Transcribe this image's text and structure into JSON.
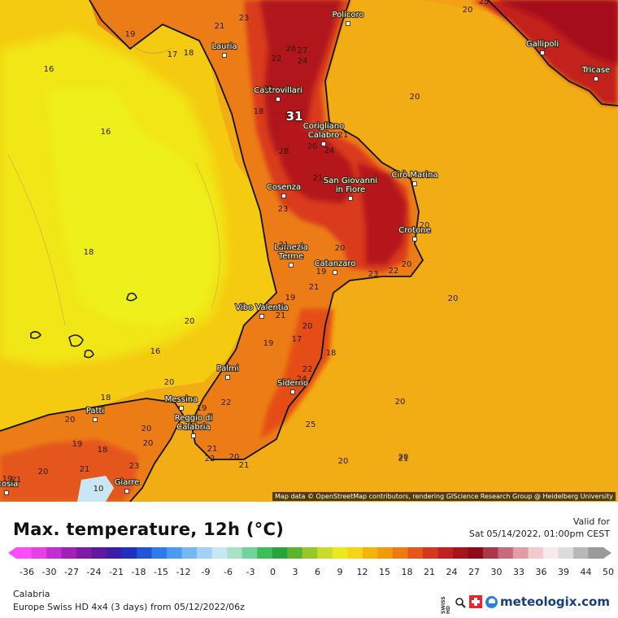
{
  "map": {
    "attribution": "Map data © OpenStreetMap contributors, rendering GIScience Research Group @ Heidelberg University",
    "cities": [
      {
        "name": "Policoro",
        "lines": [
          "Policoro"
        ]
      },
      {
        "name": "Lauria",
        "lines": [
          "Lauria"
        ]
      },
      {
        "name": "Gallipoli",
        "lines": [
          "Gallipoli"
        ]
      },
      {
        "name": "Tricase",
        "lines": [
          "Tricase"
        ]
      },
      {
        "name": "Castrovillari",
        "lines": [
          "Castrovillari"
        ]
      },
      {
        "name": "Corigliano Calabro",
        "lines": [
          "Corigliano",
          "Calabro"
        ]
      },
      {
        "name": "Cirò Marina",
        "lines": [
          "Cirò Marina"
        ]
      },
      {
        "name": "Cosenza",
        "lines": [
          "Cosenza"
        ]
      },
      {
        "name": "San Giovanni in Fiore",
        "lines": [
          "San Giovanni",
          "in Fiore"
        ]
      },
      {
        "name": "Crotone",
        "lines": [
          "Crotone"
        ]
      },
      {
        "name": "Lamezia Terme",
        "lines": [
          "Lamezia",
          "Terme"
        ]
      },
      {
        "name": "Catanzaro",
        "lines": [
          "Catanzaro"
        ]
      },
      {
        "name": "Vibo Valentia",
        "lines": [
          "Vibo Valentia"
        ]
      },
      {
        "name": "Palmi",
        "lines": [
          "Palmi"
        ]
      },
      {
        "name": "Siderno",
        "lines": [
          "Siderno"
        ]
      },
      {
        "name": "Messina",
        "lines": [
          "Messina"
        ]
      },
      {
        "name": "Patti",
        "lines": [
          "Patti"
        ]
      },
      {
        "name": "Reggio di Calabria",
        "lines": [
          "Reggio di",
          "Calabria"
        ]
      },
      {
        "name": "Giarre",
        "lines": [
          "Giarre"
        ]
      },
      {
        "name": "icosia",
        "lines": [
          "icosia"
        ]
      }
    ],
    "temperature_labels": [
      "23",
      "20",
      "25",
      "19",
      "21",
      "17",
      "18",
      "16",
      "26",
      "27",
      "22",
      "24",
      "21",
      "20",
      "18",
      "31",
      "21",
      "26",
      "24",
      "28",
      "21",
      "16",
      "23",
      "20",
      "20",
      "18",
      "19",
      "21",
      "23",
      "22",
      "21",
      "19",
      "21",
      "20",
      "20",
      "20",
      "18",
      "16",
      "17",
      "19",
      "22",
      "24",
      "25",
      "21",
      "21",
      "20",
      "20",
      "20",
      "18",
      "20",
      "19",
      "20",
      "18",
      "20",
      "23",
      "21",
      "20",
      "22",
      "19",
      "21",
      "20",
      "22",
      "20",
      "21",
      "19",
      "20",
      "10"
    ],
    "max_label": "31"
  },
  "header": {
    "title": "Max. temperature, 12h (°C)",
    "valid_label": "Valid for",
    "valid_date": "Sat 05/14/2022, 01:00pm CEST"
  },
  "scale": {
    "ticks": [
      "-36",
      "-30",
      "-27",
      "-24",
      "-21",
      "-18",
      "-15",
      "-12",
      "-9",
      "-6",
      "-3",
      "0",
      "3",
      "6",
      "9",
      "12",
      "15",
      "18",
      "21",
      "24",
      "27",
      "30",
      "33",
      "36",
      "39",
      "44",
      "50"
    ],
    "colors": [
      "#ff4cff",
      "#e63fe6",
      "#c12ed1",
      "#a020b8",
      "#7f1aa6",
      "#5f17a0",
      "#3c1ca8",
      "#1f2fbf",
      "#1f55d6",
      "#2f7bea",
      "#4a9cf2",
      "#75b8f5",
      "#a3d2f7",
      "#c9e6f5",
      "#a7e3c8",
      "#6fd49a",
      "#3cbf5a",
      "#27a53a",
      "#5ab52b",
      "#97c82a",
      "#c9dc2b",
      "#ecea1f",
      "#f5d414",
      "#f3b40e",
      "#f39a0c",
      "#ef7a12",
      "#e5561a",
      "#d6381d",
      "#c12120",
      "#a8141c",
      "#8f0b18",
      "#a8384a",
      "#c96a7a",
      "#e39ba8",
      "#f3c8cf",
      "#fbe8eb",
      "#dcdcdc",
      "#b8b8b8",
      "#9a9a9a"
    ]
  },
  "footer": {
    "region": "Calabria",
    "model": "Europe Swiss HD 4x4 (3 days) from 05/12/2022/06z",
    "swiss_hd": "SWISS HD",
    "brand": "meteologix.com"
  },
  "colors": {
    "sea_warm": "#f1a617",
    "sea_cool": "#f4c30f",
    "tyrrhenian_yellow": "#f2ea13",
    "land_orange": "#ec7d16",
    "land_red": "#d92e1c",
    "land_dark_red": "#a5101a"
  }
}
